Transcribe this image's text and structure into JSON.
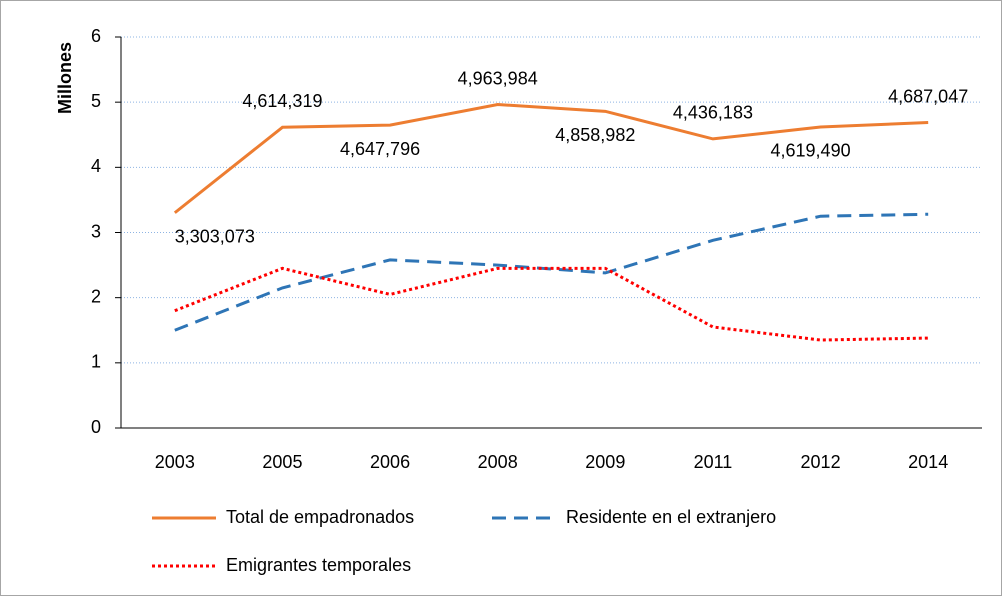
{
  "chart_data": {
    "type": "line",
    "y_label": "Millones",
    "categories": [
      "2003",
      "2005",
      "2006",
      "2008",
      "2009",
      "2011",
      "2012",
      "2014"
    ],
    "series": [
      {
        "name": "Total de empadronados",
        "color": "#ed7d31",
        "style": "solid",
        "values": [
          3.303073,
          4.614319,
          4.647796,
          4.963984,
          4.858982,
          4.436183,
          4.61949,
          4.687047
        ],
        "value_labels": [
          "3,303,073",
          "4,614,319",
          "4,647,796",
          "4,963,984",
          "4,858,982",
          "4,436,183",
          "4,619,490",
          "4,687,047"
        ]
      },
      {
        "name": "Residente en el extranjero",
        "color": "#2e75b6",
        "style": "dashed",
        "values": [
          1.5,
          2.15,
          2.58,
          2.5,
          2.38,
          2.88,
          3.25,
          3.28
        ]
      },
      {
        "name": "Emigrantes temporales",
        "color": "#ff0000",
        "style": "dotted",
        "values": [
          1.8,
          2.45,
          2.05,
          2.45,
          2.45,
          1.55,
          1.35,
          1.38
        ]
      }
    ],
    "ylim": [
      0,
      6
    ],
    "yticks": [
      0,
      1,
      2,
      3,
      4,
      5,
      6
    ],
    "grid": true
  }
}
